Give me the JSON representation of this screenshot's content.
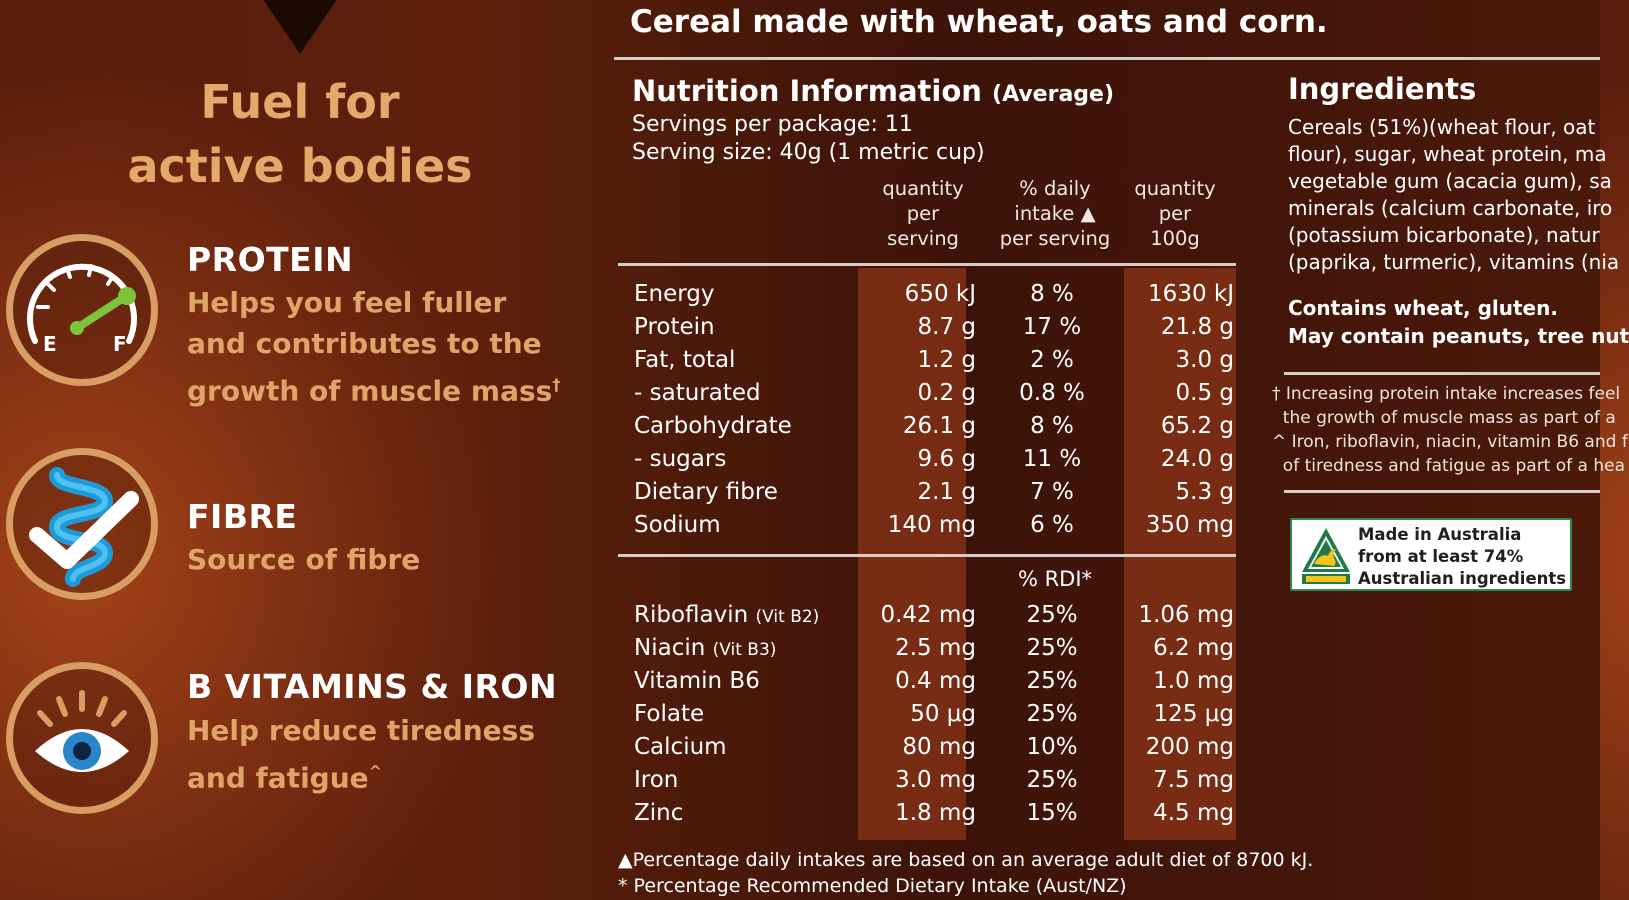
{
  "headline": {
    "line1": "Fuel for",
    "line2": "active bodies"
  },
  "benefits": [
    {
      "title": "PROTEIN",
      "text_lines": [
        "Helps you feel fuller",
        "and contributes to the",
        "growth of muscle mass"
      ],
      "mark": "†",
      "icon": "fuel-gauge-icon"
    },
    {
      "title": "FIBRE",
      "text_lines": [
        "Source of fibre"
      ],
      "mark": "",
      "icon": "gut-checkmark-icon"
    },
    {
      "title": "B VITAMINS & IRON",
      "text_lines": [
        "Help reduce tiredness",
        "and fatigue"
      ],
      "mark": "^",
      "icon": "eye-icon"
    }
  ],
  "gauge_labels": {
    "empty": "E",
    "full": "F"
  },
  "product_description": "Cereal made with wheat, oats and corn.",
  "nutrition": {
    "title": "Nutrition Information",
    "title_suffix": "(Average)",
    "servings_per_package": "Servings per package: 11",
    "serving_size": "Serving size: 40g (1 metric cup)",
    "columns": [
      "quantity\nper\nserving",
      "% daily\nintake ▲\nper serving",
      "quantity\nper\n100g"
    ],
    "rows": [
      {
        "label": "Energy",
        "per_serving": "650 kJ",
        "pct": "8 %",
        "per_100g": "1630 kJ"
      },
      {
        "label": "Protein",
        "per_serving": "8.7 g",
        "pct": "17 %",
        "per_100g": "21.8 g"
      },
      {
        "label": "Fat, total",
        "per_serving": "1.2 g",
        "pct": "2 %",
        "per_100g": "3.0 g"
      },
      {
        "label": "- saturated",
        "per_serving": "0.2 g",
        "pct": "0.8 %",
        "per_100g": "0.5 g"
      },
      {
        "label": "Carbohydrate",
        "per_serving": "26.1 g",
        "pct": "8 %",
        "per_100g": "65.2 g"
      },
      {
        "label": "- sugars",
        "per_serving": "9.6 g",
        "pct": "11 %",
        "per_100g": "24.0 g"
      },
      {
        "label": "Dietary fibre",
        "per_serving": "2.1 g",
        "pct": "7 %",
        "per_100g": "5.3 g"
      },
      {
        "label": "Sodium",
        "per_serving": "140 mg",
        "pct": "6 %",
        "per_100g": "350 mg"
      }
    ],
    "rdi_header": "% RDI*",
    "rdi_rows": [
      {
        "label": "Riboflavin",
        "sub": "(Vit B2)",
        "per_serving": "0.42 mg",
        "pct": "25%",
        "per_100g": "1.06 mg"
      },
      {
        "label": "Niacin",
        "sub": "(Vit B3)",
        "per_serving": "2.5 mg",
        "pct": "25%",
        "per_100g": "6.2 mg"
      },
      {
        "label": "Vitamin B6",
        "sub": "",
        "per_serving": "0.4 mg",
        "pct": "25%",
        "per_100g": "1.0 mg"
      },
      {
        "label": "Folate",
        "sub": "",
        "per_serving": "50 μg",
        "pct": "25%",
        "per_100g": "125 μg"
      },
      {
        "label": "Calcium",
        "sub": "",
        "per_serving": "80 mg",
        "pct": "10%",
        "per_100g": "200 mg"
      },
      {
        "label": "Iron",
        "sub": "",
        "per_serving": "3.0 mg",
        "pct": "25%",
        "per_100g": "7.5 mg"
      },
      {
        "label": "Zinc",
        "sub": "",
        "per_serving": "1.8 mg",
        "pct": "15%",
        "per_100g": "4.5 mg"
      }
    ],
    "footnote_1": "▲Percentage daily intakes are based on an average adult diet of 8700 kJ.",
    "footnote_2": "* Percentage Recommended Dietary Intake (Aust/NZ)"
  },
  "ingredients": {
    "title": "Ingredients",
    "lines": [
      "Cereals (51%)(wheat flour, oat",
      "flour), sugar, wheat protein, ma",
      "vegetable gum (acacia gum), sa",
      "minerals (calcium carbonate, iro",
      "(potassium bicarbonate), natur",
      "(paprika, turmeric), vitamins (nia"
    ],
    "allergen_1": "Contains wheat, gluten.",
    "allergen_2": "May contain peanuts, tree nut",
    "claim_notes": [
      "† Increasing protein intake increases feel",
      "  the growth of muscle mass as part of a",
      "^ Iron, riboflavin, niacin, vitamin B6 and f",
      "  of tiredness and fatigue as part of a hea"
    ]
  },
  "made_in": {
    "lines": [
      "Made in Australia",
      "from at least 74%",
      "Australian ingredients"
    ],
    "icon": "australian-made-kangaroo-logo"
  }
}
